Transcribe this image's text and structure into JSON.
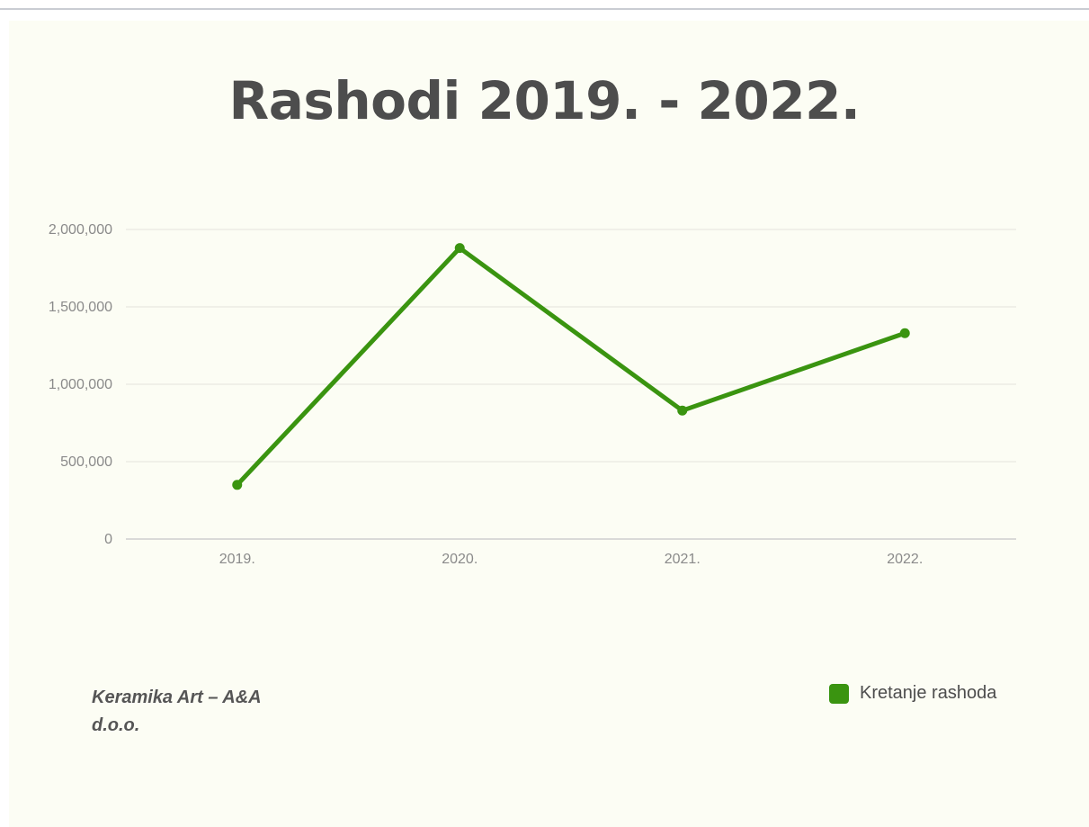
{
  "chart_data": {
    "type": "line",
    "title": "Rashodi 2019. - 2022.",
    "xlabel": "",
    "ylabel": "",
    "categories": [
      "2019.",
      "2020.",
      "2021.",
      "2022."
    ],
    "series": [
      {
        "name": "Kretanje rashoda",
        "values": [
          350000,
          1880000,
          830000,
          1330000
        ],
        "color": "#3a9410"
      }
    ],
    "ylim": [
      0,
      2000000
    ],
    "yticks": [
      0,
      500000,
      1000000,
      1500000,
      2000000
    ],
    "ytick_labels": [
      "0",
      "500,000",
      "1,000,000",
      "1,500,000",
      "2,000,000"
    ],
    "grid": true,
    "legend_position": "bottom-right"
  },
  "caption": {
    "line1": "Keramika Art – A&A",
    "line2": "d.o.o."
  },
  "colors": {
    "series": "#3a9410",
    "title": "#4d4d4d",
    "grid": "#e3e3dc",
    "axis": "#cfcfcf",
    "background": "#fcfdf4"
  }
}
